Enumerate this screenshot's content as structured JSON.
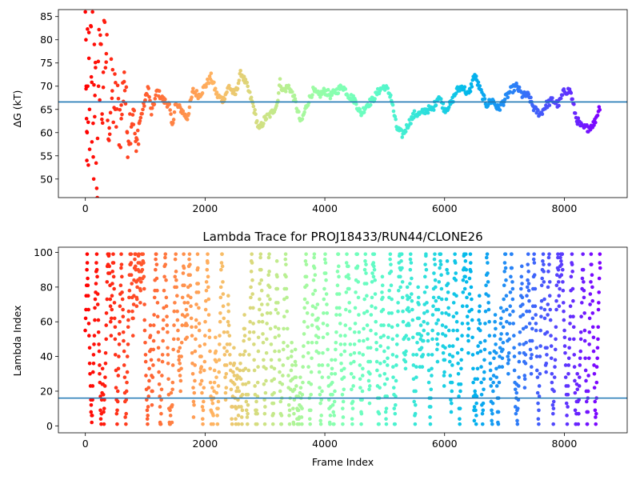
{
  "chart_data": [
    {
      "type": "scatter",
      "title": "",
      "xlabel": "",
      "ylabel": "ΔG (kT)",
      "xlim": [
        -450,
        9050
      ],
      "ylim": [
        46,
        86.5
      ],
      "xticks": [
        0,
        2000,
        4000,
        6000,
        8000
      ],
      "yticks": [
        50,
        55,
        60,
        65,
        70,
        75,
        80,
        85
      ],
      "hline": 66.6,
      "hline_color": "#1f77b4",
      "colormap": "rainbow (reversed: red at start, violet at end)",
      "grid": false,
      "series_points": [
        [
          0,
          86
        ],
        [
          10,
          80
        ],
        [
          15,
          70
        ],
        [
          20,
          63
        ],
        [
          25,
          54
        ],
        [
          30,
          60
        ],
        [
          40,
          70
        ],
        [
          50,
          53
        ],
        [
          60,
          76
        ],
        [
          70,
          65
        ],
        [
          90,
          83
        ],
        [
          100,
          72
        ],
        [
          110,
          58
        ],
        [
          120,
          86
        ],
        [
          130,
          62
        ],
        [
          140,
          50
        ],
        [
          150,
          79
        ],
        [
          160,
          68
        ],
        [
          170,
          74
        ],
        [
          190,
          48
        ],
        [
          200,
          46
        ],
        [
          220,
          70
        ],
        [
          250,
          81
        ],
        [
          280,
          64
        ],
        [
          300,
          73
        ],
        [
          350,
          77
        ],
        [
          400,
          61
        ],
        [
          450,
          69
        ],
        [
          500,
          65
        ],
        [
          600,
          63
        ],
        [
          650,
          73
        ],
        [
          700,
          60
        ],
        [
          800,
          65
        ],
        [
          850,
          56
        ],
        [
          900,
          62
        ],
        [
          1000,
          67
        ],
        [
          1050,
          70
        ],
        [
          1100,
          64
        ],
        [
          1200,
          69
        ],
        [
          1300,
          67
        ],
        [
          1400,
          66
        ],
        [
          1450,
          61
        ],
        [
          1500,
          66
        ],
        [
          1600,
          65
        ],
        [
          1700,
          63
        ],
        [
          1800,
          69
        ],
        [
          1900,
          68
        ],
        [
          2000,
          70
        ],
        [
          2100,
          72
        ],
        [
          2200,
          68
        ],
        [
          2300,
          67
        ],
        [
          2400,
          70
        ],
        [
          2500,
          68
        ],
        [
          2600,
          73
        ],
        [
          2700,
          70
        ],
        [
          2800,
          66
        ],
        [
          2900,
          60.5
        ],
        [
          3000,
          63
        ],
        [
          3100,
          64
        ],
        [
          3200,
          66
        ],
        [
          3250,
          71
        ],
        [
          3300,
          69
        ],
        [
          3400,
          70
        ],
        [
          3500,
          67
        ],
        [
          3600,
          62
        ],
        [
          3700,
          66
        ],
        [
          3800,
          69
        ],
        [
          3900,
          68
        ],
        [
          4000,
          69
        ],
        [
          4100,
          68
        ],
        [
          4200,
          69
        ],
        [
          4300,
          70
        ],
        [
          4400,
          68
        ],
        [
          4500,
          67
        ],
        [
          4600,
          64
        ],
        [
          4700,
          66
        ],
        [
          4800,
          67
        ],
        [
          4900,
          69
        ],
        [
          5000,
          70
        ],
        [
          5100,
          68
        ],
        [
          5200,
          61
        ],
        [
          5300,
          59.5
        ],
        [
          5400,
          62
        ],
        [
          5500,
          64
        ],
        [
          5600,
          64
        ],
        [
          5700,
          65
        ],
        [
          5800,
          65
        ],
        [
          5900,
          68
        ],
        [
          6000,
          65
        ],
        [
          6100,
          66
        ],
        [
          6200,
          69
        ],
        [
          6300,
          70
        ],
        [
          6400,
          68
        ],
        [
          6500,
          72.5
        ],
        [
          6600,
          69
        ],
        [
          6700,
          66
        ],
        [
          6800,
          67
        ],
        [
          6900,
          65
        ],
        [
          7000,
          67
        ],
        [
          7100,
          69
        ],
        [
          7200,
          70
        ],
        [
          7300,
          68
        ],
        [
          7400,
          68
        ],
        [
          7500,
          65
        ],
        [
          7600,
          64
        ],
        [
          7700,
          66
        ],
        [
          7800,
          67
        ],
        [
          7900,
          66
        ],
        [
          8000,
          69
        ],
        [
          8100,
          69
        ],
        [
          8200,
          63
        ],
        [
          8300,
          61
        ],
        [
          8400,
          61
        ],
        [
          8500,
          62
        ],
        [
          8600,
          66
        ]
      ]
    },
    {
      "type": "scatter",
      "title": "Lambda Trace for PROJ18433/RUN44/CLONE26",
      "xlabel": "Frame Index",
      "ylabel": "Lambda Index",
      "xlim": [
        -450,
        9050
      ],
      "ylim": [
        -4,
        103
      ],
      "xticks": [
        0,
        2000,
        4000,
        6000,
        8000
      ],
      "yticks": [
        0,
        20,
        40,
        60,
        80,
        100
      ],
      "hline": 16,
      "hline_color": "#1f77b4",
      "colormap": "rainbow (reversed: red at start, violet at end)",
      "grid": false,
      "x_range": [
        0,
        8600
      ],
      "y_range": [
        0,
        99
      ]
    }
  ]
}
